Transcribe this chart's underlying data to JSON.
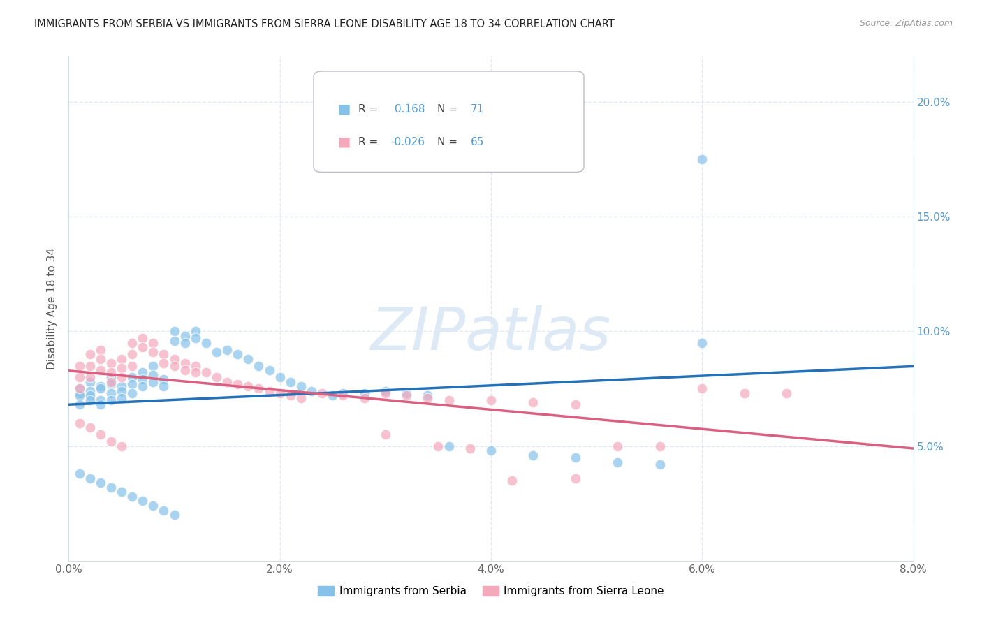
{
  "title": "IMMIGRANTS FROM SERBIA VS IMMIGRANTS FROM SIERRA LEONE DISABILITY AGE 18 TO 34 CORRELATION CHART",
  "source": "Source: ZipAtlas.com",
  "ylabel": "Disability Age 18 to 34",
  "legend_labels": [
    "Immigrants from Serbia",
    "Immigrants from Sierra Leone"
  ],
  "r_serbia": 0.168,
  "n_serbia": 71,
  "r_sierraleone": -0.026,
  "n_sierraleone": 65,
  "xlim": [
    0.0,
    0.08
  ],
  "ylim": [
    0.0,
    0.22
  ],
  "yticks": [
    0.05,
    0.1,
    0.15,
    0.2
  ],
  "ytick_labels": [
    "5.0%",
    "10.0%",
    "15.0%",
    "20.0%"
  ],
  "xticks": [
    0.0,
    0.02,
    0.04,
    0.06,
    0.08
  ],
  "xtick_labels": [
    "0.0%",
    "2.0%",
    "4.0%",
    "6.0%",
    "8.0%"
  ],
  "color_serbia": "#85c1e8",
  "color_sierraleone": "#f4a8bb",
  "trendline_serbia_color": "#2471b8",
  "trendline_sierraleone_color": "#d96080",
  "background_color": "#ffffff",
  "grid_color": "#ddeaf5",
  "watermark": "ZIPatlas",
  "serbia_x": [
    0.001,
    0.001,
    0.001,
    0.001,
    0.002,
    0.002,
    0.002,
    0.002,
    0.003,
    0.003,
    0.003,
    0.003,
    0.004,
    0.004,
    0.004,
    0.004,
    0.005,
    0.005,
    0.005,
    0.006,
    0.006,
    0.006,
    0.007,
    0.007,
    0.007,
    0.008,
    0.008,
    0.008,
    0.009,
    0.009,
    0.01,
    0.01,
    0.011,
    0.011,
    0.012,
    0.012,
    0.013,
    0.014,
    0.015,
    0.016,
    0.017,
    0.018,
    0.019,
    0.02,
    0.021,
    0.022,
    0.023,
    0.025,
    0.026,
    0.028,
    0.03,
    0.032,
    0.034,
    0.036,
    0.04,
    0.044,
    0.048,
    0.052,
    0.056,
    0.06,
    0.001,
    0.002,
    0.003,
    0.004,
    0.005,
    0.006,
    0.007,
    0.008,
    0.009,
    0.01,
    0.06
  ],
  "serbia_y": [
    0.075,
    0.073,
    0.072,
    0.068,
    0.078,
    0.074,
    0.072,
    0.07,
    0.076,
    0.075,
    0.07,
    0.068,
    0.08,
    0.077,
    0.073,
    0.07,
    0.076,
    0.074,
    0.071,
    0.08,
    0.077,
    0.073,
    0.082,
    0.079,
    0.076,
    0.085,
    0.081,
    0.078,
    0.079,
    0.076,
    0.1,
    0.096,
    0.098,
    0.095,
    0.1,
    0.097,
    0.095,
    0.091,
    0.092,
    0.09,
    0.088,
    0.085,
    0.083,
    0.08,
    0.078,
    0.076,
    0.074,
    0.072,
    0.073,
    0.073,
    0.074,
    0.073,
    0.072,
    0.05,
    0.048,
    0.046,
    0.045,
    0.043,
    0.042,
    0.095,
    0.038,
    0.036,
    0.034,
    0.032,
    0.03,
    0.028,
    0.026,
    0.024,
    0.022,
    0.02,
    0.175
  ],
  "sierraleone_x": [
    0.001,
    0.001,
    0.001,
    0.002,
    0.002,
    0.002,
    0.003,
    0.003,
    0.003,
    0.004,
    0.004,
    0.004,
    0.005,
    0.005,
    0.005,
    0.006,
    0.006,
    0.006,
    0.007,
    0.007,
    0.008,
    0.008,
    0.009,
    0.009,
    0.01,
    0.01,
    0.011,
    0.011,
    0.012,
    0.012,
    0.013,
    0.014,
    0.015,
    0.016,
    0.017,
    0.018,
    0.019,
    0.02,
    0.021,
    0.022,
    0.024,
    0.026,
    0.028,
    0.03,
    0.032,
    0.034,
    0.036,
    0.04,
    0.044,
    0.048,
    0.052,
    0.056,
    0.06,
    0.064,
    0.068,
    0.03,
    0.035,
    0.038,
    0.042,
    0.048,
    0.001,
    0.002,
    0.003,
    0.004,
    0.005
  ],
  "sierraleone_y": [
    0.085,
    0.08,
    0.075,
    0.09,
    0.085,
    0.08,
    0.092,
    0.088,
    0.083,
    0.086,
    0.082,
    0.078,
    0.088,
    0.084,
    0.08,
    0.095,
    0.09,
    0.085,
    0.097,
    0.093,
    0.095,
    0.091,
    0.09,
    0.086,
    0.088,
    0.085,
    0.086,
    0.083,
    0.085,
    0.082,
    0.082,
    0.08,
    0.078,
    0.077,
    0.076,
    0.075,
    0.074,
    0.073,
    0.072,
    0.071,
    0.073,
    0.072,
    0.071,
    0.073,
    0.072,
    0.071,
    0.07,
    0.07,
    0.069,
    0.068,
    0.05,
    0.05,
    0.075,
    0.073,
    0.073,
    0.055,
    0.05,
    0.049,
    0.035,
    0.036,
    0.06,
    0.058,
    0.055,
    0.052,
    0.05
  ]
}
